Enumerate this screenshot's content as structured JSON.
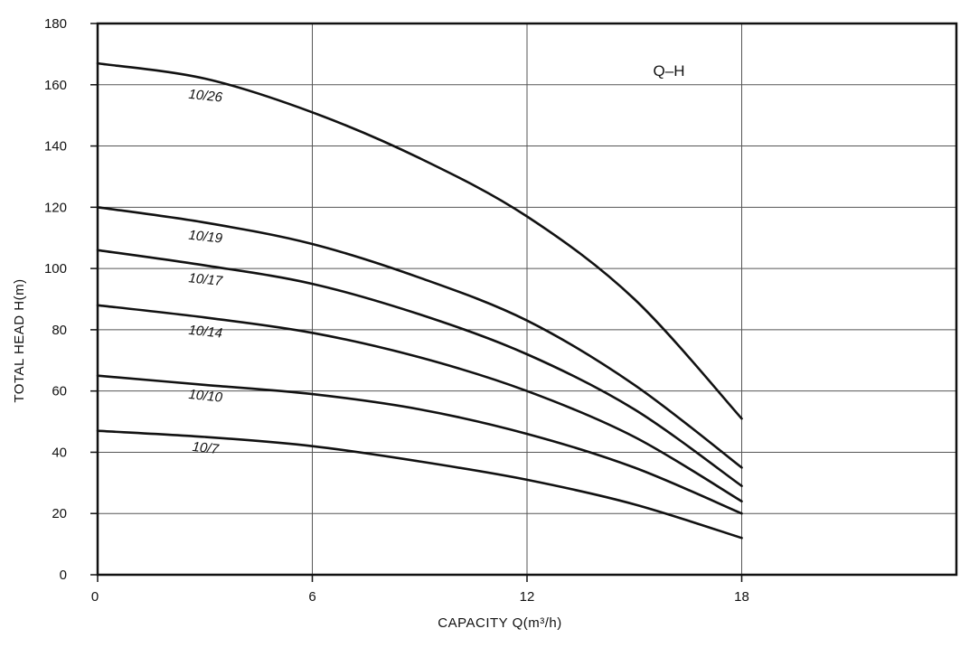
{
  "chart_data": {
    "type": "line",
    "title": "Q–H",
    "xlabel": "CAPACITY  Q(m³/h)",
    "ylabel": "TOTAL HEAD  H(m)",
    "xlim": [
      0,
      24
    ],
    "ylim": [
      0,
      180
    ],
    "xticks": [
      0,
      6,
      12,
      18
    ],
    "yticks": [
      0,
      20,
      40,
      60,
      80,
      100,
      120,
      140,
      160,
      180
    ],
    "grid": true,
    "series": [
      {
        "name": "10/26",
        "label_at": [
          3,
          155
        ],
        "x": [
          0,
          3,
          6,
          9,
          12,
          15,
          18
        ],
        "y": [
          167,
          162,
          151,
          136,
          117,
          90,
          51
        ]
      },
      {
        "name": "10/19",
        "label_at": [
          3,
          109
        ],
        "x": [
          0,
          3,
          6,
          9,
          12,
          15,
          18
        ],
        "y": [
          120,
          115,
          108,
          97,
          83,
          62,
          35
        ]
      },
      {
        "name": "10/17",
        "label_at": [
          3,
          95
        ],
        "x": [
          0,
          3,
          6,
          9,
          12,
          15,
          18
        ],
        "y": [
          106,
          101,
          95,
          85,
          72,
          54,
          29
        ]
      },
      {
        "name": "10/14",
        "label_at": [
          3,
          78
        ],
        "x": [
          0,
          3,
          6,
          9,
          12,
          15,
          18
        ],
        "y": [
          88,
          84,
          79,
          71,
          60,
          45,
          24
        ]
      },
      {
        "name": "10/10",
        "label_at": [
          3,
          57
        ],
        "x": [
          0,
          3,
          6,
          9,
          12,
          15,
          18
        ],
        "y": [
          65,
          62,
          59,
          54,
          46,
          35,
          20
        ]
      },
      {
        "name": "10/7",
        "label_at": [
          3,
          40
        ],
        "x": [
          0,
          3,
          6,
          9,
          12,
          15,
          18
        ],
        "y": [
          47,
          45,
          42,
          37,
          31,
          23,
          12
        ]
      }
    ]
  }
}
